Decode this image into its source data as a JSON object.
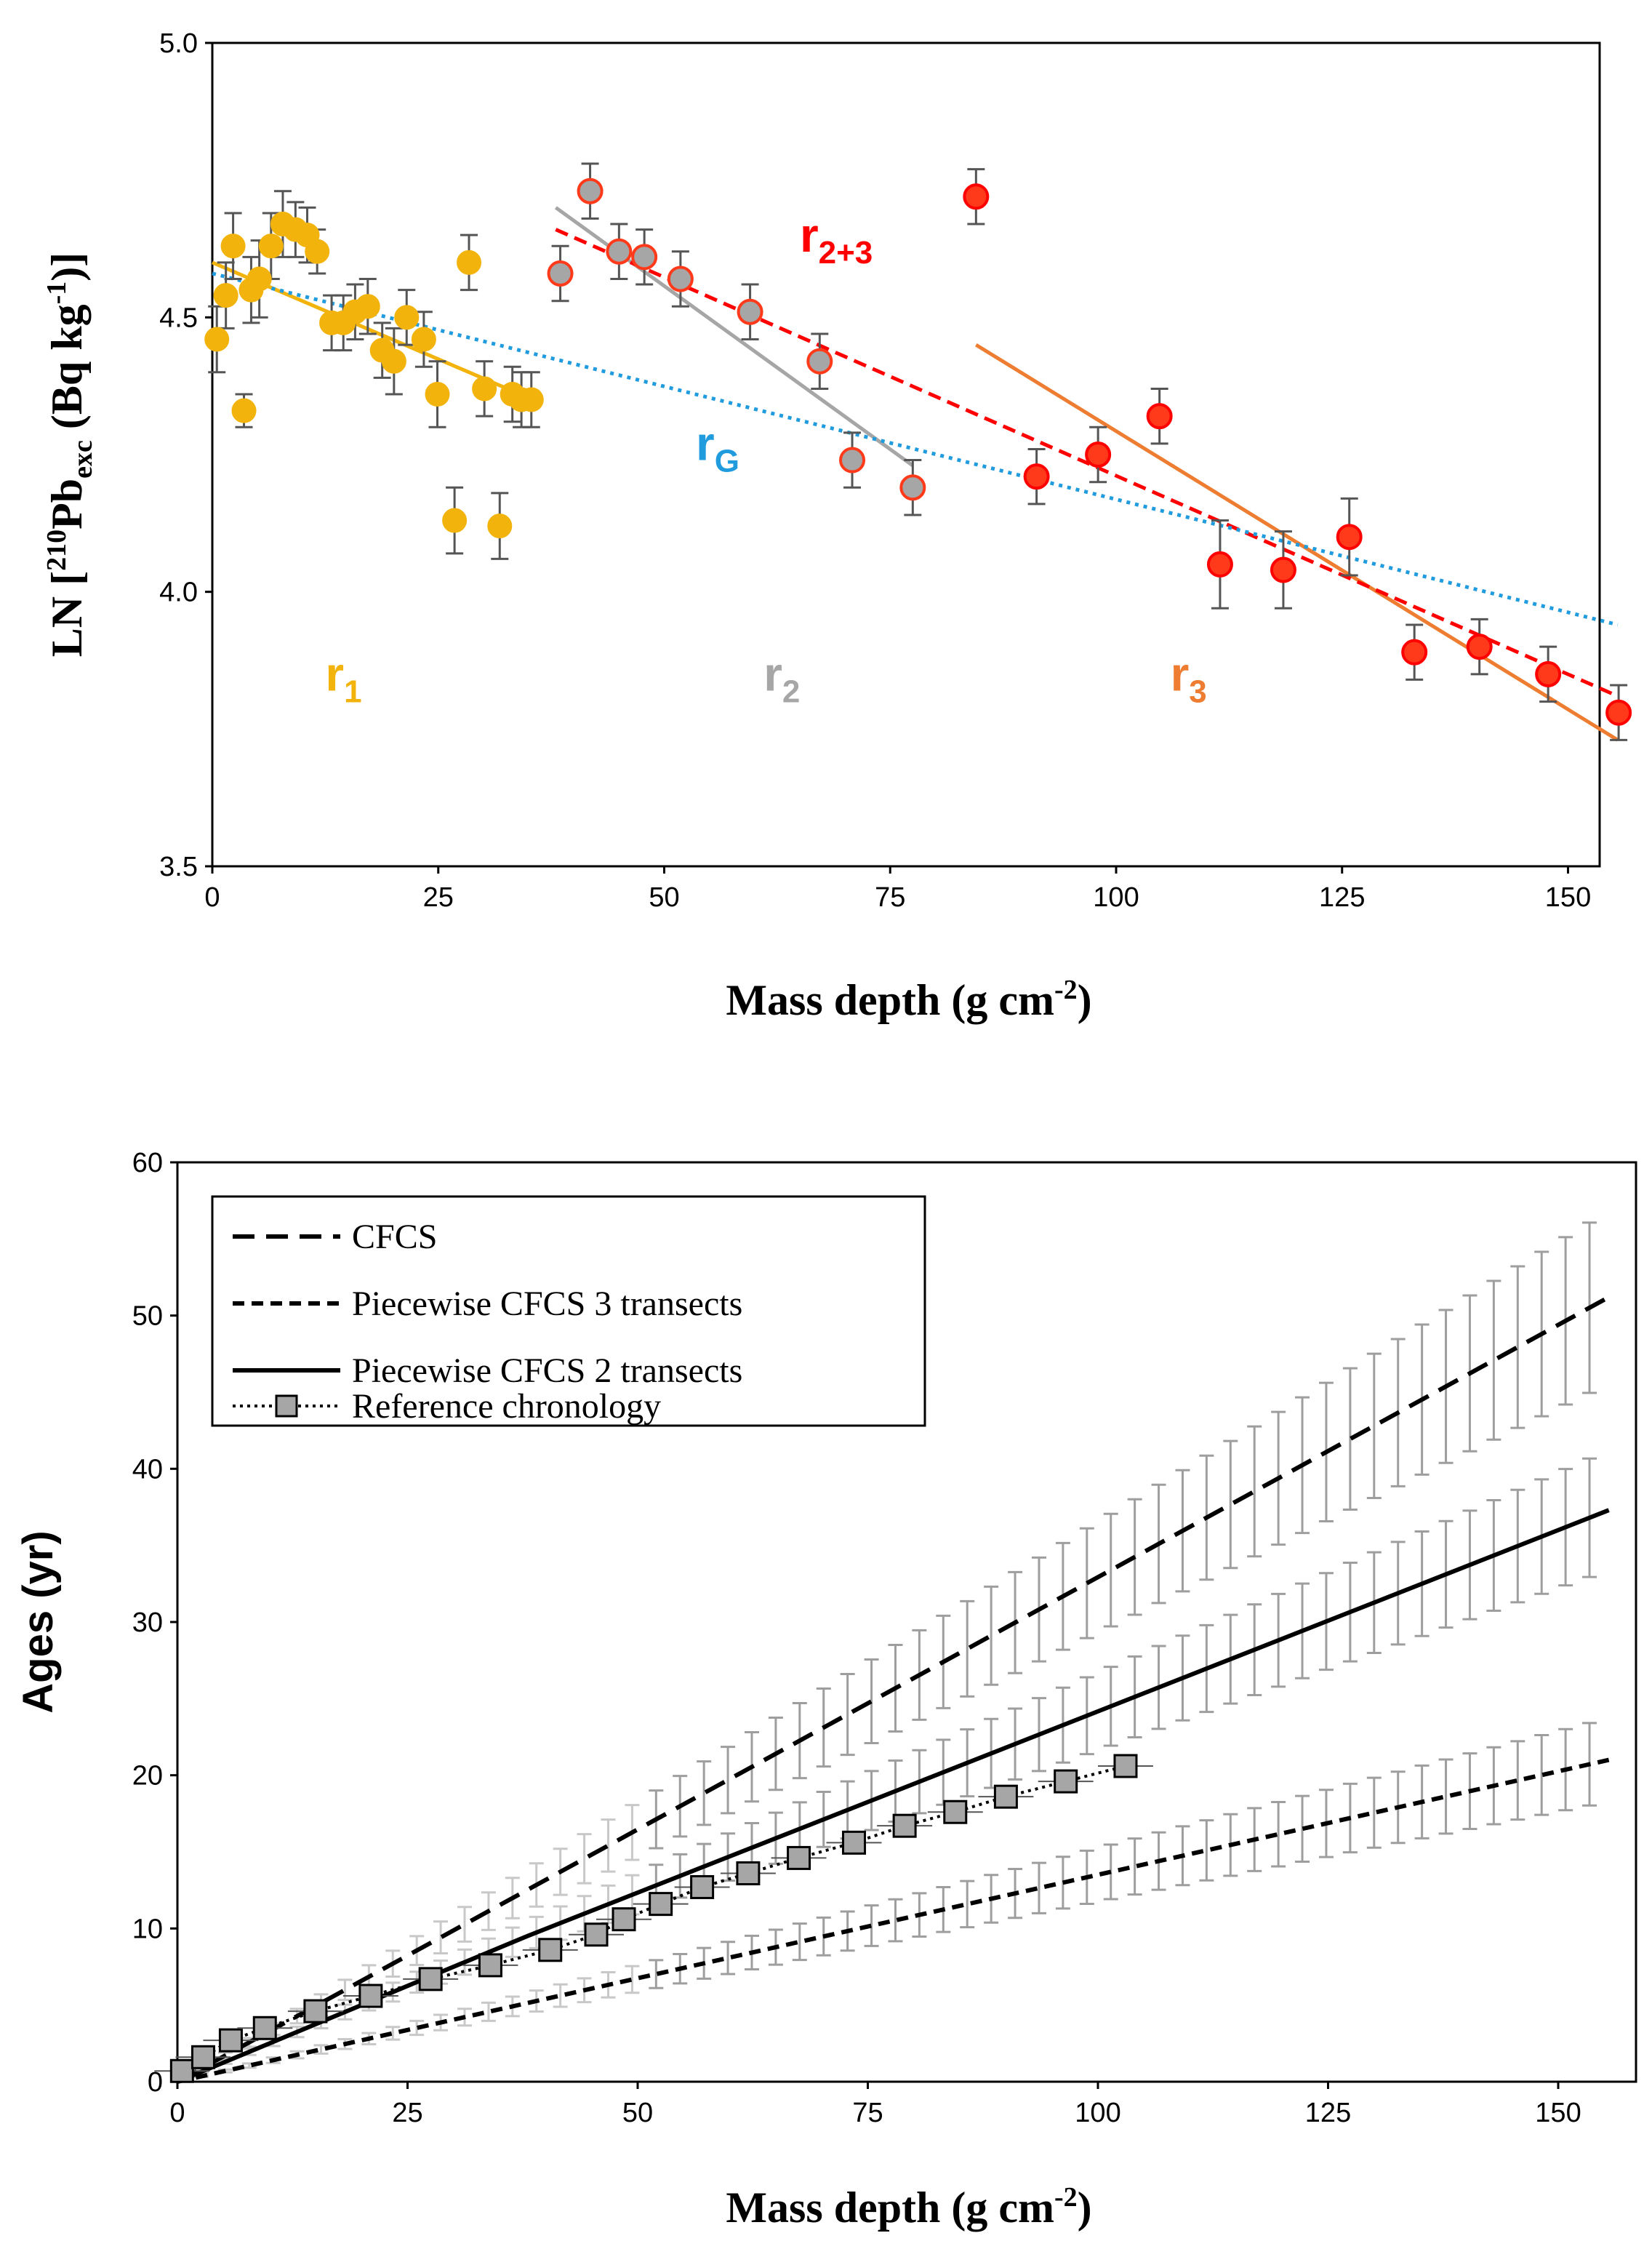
{
  "chart_data": [
    {
      "type": "scatter",
      "title": "",
      "xlabel": "Mass depth (g cm-2)",
      "xlabel_parts": {
        "main": "Mass depth (g cm",
        "sup": "-2",
        "close": ")"
      },
      "ylabel_parts": {
        "pre": "LN [",
        "sup1": "210",
        "mid": "Pb",
        "sub": "exc",
        "post": " (Bq kg",
        "sup2": "-1",
        "end": ")]"
      },
      "xlim": [
        0,
        160
      ],
      "ylim": [
        3.5,
        5.0
      ],
      "xticks": [
        "0",
        "25",
        "50",
        "75",
        "100",
        "125",
        "150"
      ],
      "yticks": [
        "3.5",
        "4.0",
        "4.5",
        "5.0"
      ],
      "colors": {
        "r1": "#F2B40C",
        "r2": "#A6A6A6",
        "r3": "#EE7D31",
        "r23": "#FF0000",
        "rG": "#1F9BDE",
        "red_point": "#FF3A1A"
      },
      "series": [
        {
          "name": "r1 points",
          "style": "yellow",
          "x": [
            0.5,
            1.5,
            2.3,
            3.5,
            4.3,
            5.2,
            6.5,
            7.8,
            9.2,
            10.5,
            11.6,
            13.2,
            14.5,
            15.8,
            17.2,
            18.8,
            20.1,
            21.5,
            23.4,
            24.9,
            26.8,
            28.4,
            30.1,
            31.8,
            33.2,
            34.2,
            35.3
          ],
          "y": [
            4.46,
            4.54,
            4.63,
            4.33,
            4.55,
            4.57,
            4.63,
            4.67,
            4.66,
            4.65,
            4.62,
            4.49,
            4.49,
            4.51,
            4.52,
            4.44,
            4.42,
            4.5,
            4.46,
            4.36,
            4.13,
            4.6,
            4.37,
            4.12,
            4.36,
            4.35,
            4.35
          ],
          "err": [
            0.06,
            0.06,
            0.06,
            0.03,
            0.06,
            0.07,
            0.06,
            0.06,
            0.05,
            0.05,
            0.04,
            0.05,
            0.05,
            0.05,
            0.05,
            0.05,
            0.06,
            0.05,
            0.05,
            0.06,
            0.06,
            0.05,
            0.05,
            0.06,
            0.05,
            0.05,
            0.05
          ]
        },
        {
          "name": "r2 points",
          "style": "grey",
          "x": [
            38.5,
            41.8,
            45.0,
            47.8,
            51.8,
            59.5,
            67.2,
            70.8,
            77.5
          ],
          "y": [
            4.58,
            4.73,
            4.62,
            4.61,
            4.57,
            4.51,
            4.42,
            4.24,
            4.19
          ],
          "err": [
            0.05,
            0.05,
            0.05,
            0.05,
            0.05,
            0.05,
            0.05,
            0.05,
            0.05
          ]
        },
        {
          "name": "r3 points",
          "style": "red",
          "x": [
            84.5,
            91.2,
            98.0,
            104.8,
            111.5,
            118.5,
            125.8,
            133.0,
            140.2,
            147.8,
            155.6
          ],
          "y": [
            4.72,
            4.21,
            4.25,
            4.32,
            4.05,
            4.04,
            4.1,
            3.89,
            3.9,
            3.85,
            3.78
          ],
          "err": [
            0.05,
            0.05,
            0.05,
            0.05,
            0.08,
            0.07,
            0.07,
            0.05,
            0.05,
            0.05,
            0.05
          ]
        }
      ],
      "fits": [
        {
          "name": "r1",
          "x": [
            0,
            35.5
          ],
          "y": [
            4.6,
            4.35
          ],
          "dash": "solid",
          "color": "#F2B40C"
        },
        {
          "name": "r2",
          "x": [
            38.0,
            77.5
          ],
          "y": [
            4.7,
            4.23
          ],
          "dash": "solid",
          "color": "#A6A6A6"
        },
        {
          "name": "r3",
          "x": [
            84.5,
            155.5
          ],
          "y": [
            4.45,
            3.73
          ],
          "dash": "solid",
          "color": "#EE7D31"
        },
        {
          "name": "r2+3",
          "x": [
            38.0,
            155.5
          ],
          "y": [
            4.66,
            3.81
          ],
          "dash": "dashed",
          "color": "#FF0000"
        },
        {
          "name": "rG",
          "x": [
            0,
            155.5
          ],
          "y": [
            4.58,
            3.94
          ],
          "dash": "dotted",
          "color": "#1F9BDE"
        }
      ],
      "annotations": [
        {
          "text": "r",
          "sub": "1",
          "x": 12.5,
          "y": 3.82,
          "color": "#F2B40C"
        },
        {
          "text": "r",
          "sub": "2",
          "x": 61,
          "y": 3.82,
          "color": "#A6A6A6"
        },
        {
          "text": "r",
          "sub": "3",
          "x": 106,
          "y": 3.82,
          "color": "#EE7D31"
        },
        {
          "text": "r",
          "sub": "G",
          "x": 53.5,
          "y": 4.24,
          "color": "#1F9BDE"
        },
        {
          "text": "r",
          "sub": "2+3",
          "x": 65,
          "y": 4.62,
          "color": "#FF0000"
        }
      ]
    },
    {
      "type": "line",
      "title": "",
      "xlabel": "Mass depth (g cm-2)",
      "xlabel_parts": {
        "main": "Mass depth (g cm",
        "sup": "-2",
        "close": ")"
      },
      "ylabel": "Ages (yr)",
      "xlim": [
        0,
        160
      ],
      "ylim": [
        0,
        60
      ],
      "xticks": [
        "0",
        "25",
        "50",
        "75",
        "100",
        "125",
        "150"
      ],
      "yticks": [
        "0",
        "10",
        "20",
        "30",
        "40",
        "50",
        "60"
      ],
      "legend": {
        "position": "top-left",
        "entries": [
          "CFCS",
          "Piecewise CFCS 3 transects",
          "Piecewise CFCS 2 transects",
          "Reference chronology"
        ]
      },
      "series": [
        {
          "name": "CFCS",
          "style": "long-dash",
          "x": [
            0,
            155.5
          ],
          "y": [
            0,
            51.2
          ],
          "err_rel": 0.11,
          "err_step": 2.6
        },
        {
          "name": "Piecewise CFCS 3 transects",
          "style": "short-dash",
          "x": [
            0,
            155.5
          ],
          "y": [
            0,
            21.0
          ],
          "err_rel": 0.13,
          "err_step": 2.6
        },
        {
          "name": "Piecewise CFCS 2 transects",
          "style": "solid",
          "x": [
            0,
            38,
            155.5
          ],
          "y": [
            0,
            9.5,
            37.3
          ],
          "err_rel": 0.105,
          "err_step": 2.6
        },
        {
          "name": "Reference chronology",
          "style": "dotted-square",
          "x": [
            0.5,
            2.8,
            5.8,
            9.5,
            15.0,
            21.0,
            27.5,
            34.0,
            40.5,
            45.5,
            48.5,
            52.5,
            57.0,
            62.0,
            67.5,
            73.5,
            79.0,
            84.5,
            90.0,
            96.5,
            103.0
          ],
          "y": [
            0.7,
            1.6,
            2.7,
            3.5,
            4.6,
            5.6,
            6.7,
            7.6,
            8.6,
            9.6,
            10.6,
            11.6,
            12.7,
            13.6,
            14.6,
            15.6,
            16.7,
            17.6,
            18.6,
            19.6,
            20.6
          ],
          "xerr": 3.0,
          "yerr": 0.6
        }
      ]
    }
  ]
}
